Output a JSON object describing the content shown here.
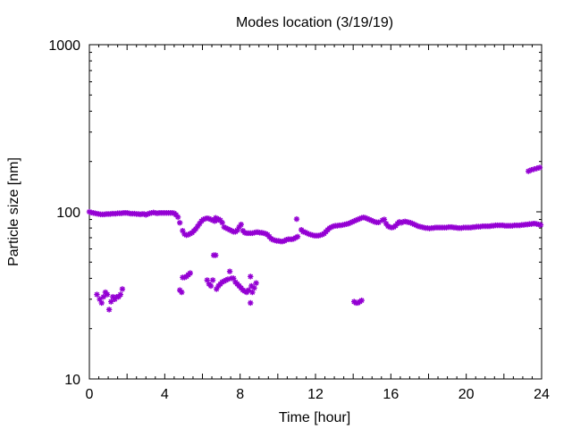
{
  "chart_data": {
    "type": "scatter",
    "title": "Modes location (3/19/19)",
    "xlabel": "Time [hour]",
    "ylabel": "Particle size [nm]",
    "xlim": [
      0,
      24
    ],
    "ylim": [
      10,
      1000
    ],
    "yscale": "log",
    "grid": false,
    "legend": "none",
    "marker_color": "#9400d3",
    "x_ticks": [
      0,
      4,
      8,
      12,
      16,
      20,
      24
    ],
    "y_ticks": [
      10,
      100,
      1000
    ],
    "x_tick_labels": [
      "0",
      "4",
      "8",
      "12",
      "16",
      "20",
      "24"
    ],
    "y_tick_labels": [
      "10",
      "100",
      "1000"
    ],
    "series": [
      {
        "points": [
          [
            0,
            100
          ],
          [
            0.1,
            99
          ],
          [
            0.2,
            98.5
          ],
          [
            0.3,
            98
          ],
          [
            0.4,
            97.5
          ],
          [
            0.5,
            97
          ],
          [
            0.6,
            96.5
          ],
          [
            0.7,
            96.5
          ],
          [
            0.8,
            96.5
          ],
          [
            0.9,
            97
          ],
          [
            1.0,
            97
          ],
          [
            1.1,
            97
          ],
          [
            1.2,
            97.5
          ],
          [
            1.3,
            97.5
          ],
          [
            1.4,
            97.5
          ],
          [
            1.5,
            98
          ],
          [
            1.6,
            98
          ],
          [
            1.7,
            98
          ],
          [
            1.8,
            98.5
          ],
          [
            1.9,
            98.5
          ],
          [
            2.0,
            98.5
          ],
          [
            2.1,
            98
          ],
          [
            2.2,
            97.5
          ],
          [
            2.3,
            97.5
          ],
          [
            2.4,
            97.5
          ],
          [
            2.5,
            97
          ],
          [
            2.6,
            97
          ],
          [
            2.7,
            96.5
          ],
          [
            2.8,
            97
          ],
          [
            2.9,
            97
          ],
          [
            3.0,
            96
          ],
          [
            3.1,
            97
          ],
          [
            3.2,
            98
          ],
          [
            3.3,
            98.5
          ],
          [
            3.4,
            99
          ],
          [
            3.5,
            98.5
          ],
          [
            3.6,
            98
          ],
          [
            3.7,
            98.5
          ],
          [
            3.8,
            98.5
          ],
          [
            3.9,
            98.5
          ],
          [
            4.0,
            98.5
          ],
          [
            4.1,
            98.5
          ],
          [
            4.2,
            98.5
          ],
          [
            4.3,
            98.5
          ],
          [
            4.4,
            98.5
          ],
          [
            4.5,
            98
          ],
          [
            4.6,
            96
          ],
          [
            4.7,
            93
          ],
          [
            4.8,
            86
          ],
          [
            4.95,
            77
          ],
          [
            5.05,
            73.5
          ],
          [
            5.15,
            72.5
          ],
          [
            5.25,
            73
          ],
          [
            5.35,
            74
          ],
          [
            5.45,
            75
          ],
          [
            5.55,
            77
          ],
          [
            5.65,
            79
          ],
          [
            5.75,
            82
          ],
          [
            5.85,
            85
          ],
          [
            5.95,
            88
          ],
          [
            6.05,
            90
          ],
          [
            6.15,
            91
          ],
          [
            6.25,
            91.5
          ],
          [
            6.35,
            91
          ],
          [
            6.45,
            90
          ],
          [
            6.55,
            89
          ],
          [
            6.65,
            88
          ],
          [
            6.75,
            89
          ],
          [
            6.85,
            90.5
          ],
          [
            6.95,
            89
          ],
          [
            7.05,
            86
          ],
          [
            7.15,
            81
          ],
          [
            7.25,
            80
          ],
          [
            7.35,
            79
          ],
          [
            7.45,
            78
          ],
          [
            7.55,
            77
          ],
          [
            7.65,
            76
          ],
          [
            7.75,
            76
          ],
          [
            7.85,
            77.5
          ],
          [
            7.95,
            81
          ],
          [
            8.05,
            84
          ],
          [
            8.15,
            77
          ],
          [
            8.25,
            75
          ],
          [
            8.35,
            74.5
          ],
          [
            8.45,
            74.5
          ],
          [
            8.55,
            74.5
          ],
          [
            8.65,
            74.5
          ],
          [
            8.75,
            75
          ],
          [
            8.85,
            75.5
          ],
          [
            8.95,
            75.5
          ],
          [
            9.05,
            75
          ],
          [
            9.15,
            75
          ],
          [
            9.25,
            74.5
          ],
          [
            9.35,
            74
          ],
          [
            9.45,
            73
          ],
          [
            9.55,
            71
          ],
          [
            9.65,
            69
          ],
          [
            9.75,
            68
          ],
          [
            9.85,
            67.5
          ],
          [
            9.95,
            67
          ],
          [
            10.05,
            67
          ],
          [
            10.15,
            66.5
          ],
          [
            10.25,
            66.5
          ],
          [
            10.35,
            67
          ],
          [
            10.45,
            68
          ],
          [
            10.55,
            68.5
          ],
          [
            10.65,
            68.5
          ],
          [
            10.75,
            68.5
          ],
          [
            10.85,
            69
          ],
          [
            10.95,
            70
          ],
          [
            11.05,
            71
          ],
          [
            11.25,
            78
          ],
          [
            11.35,
            76
          ],
          [
            11.45,
            75.5
          ],
          [
            11.55,
            74.5
          ],
          [
            11.65,
            73.5
          ],
          [
            11.75,
            73
          ],
          [
            11.85,
            72.5
          ],
          [
            11.95,
            72
          ],
          [
            12.05,
            72
          ],
          [
            12.15,
            72
          ],
          [
            12.25,
            72.5
          ],
          [
            12.35,
            73
          ],
          [
            12.45,
            74
          ],
          [
            12.55,
            76
          ],
          [
            12.65,
            78
          ],
          [
            12.75,
            80
          ],
          [
            12.85,
            81
          ],
          [
            12.95,
            82
          ],
          [
            13.05,
            82.5
          ],
          [
            13.15,
            82.5
          ],
          [
            13.25,
            83
          ],
          [
            13.35,
            83
          ],
          [
            13.45,
            83.5
          ],
          [
            13.55,
            84
          ],
          [
            13.65,
            84.5
          ],
          [
            13.75,
            85
          ],
          [
            13.85,
            86
          ],
          [
            13.95,
            87
          ],
          [
            14.05,
            88
          ],
          [
            14.15,
            89
          ],
          [
            14.25,
            90
          ],
          [
            14.35,
            91
          ],
          [
            14.45,
            92
          ],
          [
            14.55,
            92.5
          ],
          [
            14.65,
            92
          ],
          [
            14.75,
            91
          ],
          [
            14.85,
            90
          ],
          [
            14.95,
            89
          ],
          [
            15.05,
            88
          ],
          [
            15.15,
            87
          ],
          [
            15.25,
            86.5
          ],
          [
            15.35,
            86.5
          ],
          [
            15.55,
            89
          ],
          [
            15.65,
            90
          ],
          [
            15.75,
            85
          ],
          [
            15.85,
            82
          ],
          [
            15.95,
            81
          ],
          [
            16.05,
            80.5
          ],
          [
            16.15,
            81
          ],
          [
            16.25,
            82.5
          ],
          [
            16.35,
            85
          ],
          [
            16.45,
            87
          ],
          [
            16.55,
            86
          ],
          [
            16.65,
            87
          ],
          [
            16.75,
            87.5
          ],
          [
            16.85,
            87
          ],
          [
            16.95,
            86.5
          ],
          [
            17.05,
            86
          ],
          [
            17.15,
            85
          ],
          [
            17.25,
            84
          ],
          [
            17.35,
            83
          ],
          [
            17.45,
            82
          ],
          [
            17.55,
            81.5
          ],
          [
            17.65,
            81
          ],
          [
            17.75,
            80.5
          ],
          [
            17.85,
            80
          ],
          [
            17.95,
            80
          ],
          [
            18.05,
            79.5
          ],
          [
            18.15,
            80
          ],
          [
            18.25,
            80
          ],
          [
            18.35,
            80.5
          ],
          [
            18.45,
            80.5
          ],
          [
            18.55,
            80.5
          ],
          [
            18.65,
            80.5
          ],
          [
            18.75,
            80.5
          ],
          [
            18.85,
            80.5
          ],
          [
            18.95,
            80.5
          ],
          [
            19.05,
            81
          ],
          [
            19.15,
            81
          ],
          [
            19.25,
            81
          ],
          [
            19.35,
            80.5
          ],
          [
            19.45,
            80.5
          ],
          [
            19.55,
            80
          ],
          [
            19.65,
            80
          ],
          [
            19.75,
            80
          ],
          [
            19.85,
            80.5
          ],
          [
            19.95,
            80.5
          ],
          [
            20.05,
            80.5
          ],
          [
            20.15,
            80.5
          ],
          [
            20.25,
            80.5
          ],
          [
            20.35,
            81
          ],
          [
            20.45,
            81
          ],
          [
            20.55,
            81.5
          ],
          [
            20.65,
            81.5
          ],
          [
            20.75,
            81.5
          ],
          [
            20.85,
            82
          ],
          [
            20.95,
            82
          ],
          [
            21.05,
            82
          ],
          [
            21.15,
            82
          ],
          [
            21.25,
            82
          ],
          [
            21.35,
            82.5
          ],
          [
            21.45,
            82.5
          ],
          [
            21.55,
            83
          ],
          [
            21.65,
            83
          ],
          [
            21.75,
            83
          ],
          [
            21.85,
            83
          ],
          [
            21.95,
            83
          ],
          [
            22.05,
            82.5
          ],
          [
            22.15,
            82.5
          ],
          [
            22.25,
            82.5
          ],
          [
            22.35,
            82.5
          ],
          [
            22.45,
            82.5
          ],
          [
            22.55,
            83
          ],
          [
            22.65,
            83
          ],
          [
            22.75,
            83
          ],
          [
            22.85,
            83
          ],
          [
            22.95,
            83.5
          ],
          [
            23.05,
            83.5
          ],
          [
            23.15,
            84
          ],
          [
            23.25,
            84
          ],
          [
            23.35,
            84.5
          ],
          [
            23.45,
            84.5
          ],
          [
            23.55,
            85
          ],
          [
            23.65,
            85
          ],
          [
            23.75,
            84.5
          ],
          [
            23.85,
            84
          ],
          [
            23.95,
            83.5
          ],
          [
            23.3,
            175
          ],
          [
            23.45,
            178
          ],
          [
            23.6,
            180
          ],
          [
            23.75,
            182
          ],
          [
            23.9,
            184
          ],
          [
            11.0,
            90.5
          ],
          [
            6.7,
            92
          ],
          [
            0.4,
            32
          ],
          [
            0.55,
            30
          ],
          [
            0.65,
            28.5
          ],
          [
            0.75,
            31
          ],
          [
            0.85,
            33
          ],
          [
            0.95,
            32
          ],
          [
            1.05,
            26
          ],
          [
            1.15,
            29
          ],
          [
            1.25,
            31
          ],
          [
            1.35,
            30
          ],
          [
            1.45,
            31
          ],
          [
            1.55,
            31
          ],
          [
            1.65,
            32
          ],
          [
            1.75,
            34.5
          ],
          [
            4.8,
            34
          ],
          [
            4.9,
            33
          ],
          [
            4.95,
            40.5
          ],
          [
            5.05,
            40.5
          ],
          [
            5.15,
            41
          ],
          [
            5.25,
            42
          ],
          [
            5.35,
            43
          ],
          [
            6.25,
            39
          ],
          [
            6.35,
            37
          ],
          [
            6.45,
            36
          ],
          [
            6.55,
            39
          ],
          [
            6.6,
            55
          ],
          [
            6.7,
            55
          ],
          [
            6.75,
            34.5
          ],
          [
            6.85,
            36
          ],
          [
            6.95,
            37
          ],
          [
            7.05,
            38
          ],
          [
            7.15,
            38.5
          ],
          [
            7.25,
            39
          ],
          [
            7.35,
            39.5
          ],
          [
            7.45,
            44
          ],
          [
            7.55,
            40
          ],
          [
            7.65,
            40
          ],
          [
            7.75,
            38
          ],
          [
            7.85,
            37
          ],
          [
            7.95,
            36
          ],
          [
            8.05,
            35
          ],
          [
            8.15,
            34
          ],
          [
            8.25,
            33.5
          ],
          [
            8.35,
            33
          ],
          [
            8.45,
            34
          ],
          [
            8.55,
            41
          ],
          [
            8.6,
            36
          ],
          [
            8.55,
            28.5
          ],
          [
            8.65,
            33
          ],
          [
            8.75,
            35
          ],
          [
            8.85,
            37.5
          ],
          [
            14.05,
            29
          ],
          [
            14.15,
            28.5
          ],
          [
            14.25,
            28.5
          ],
          [
            14.35,
            29
          ],
          [
            14.45,
            29.5
          ]
        ]
      }
    ]
  }
}
